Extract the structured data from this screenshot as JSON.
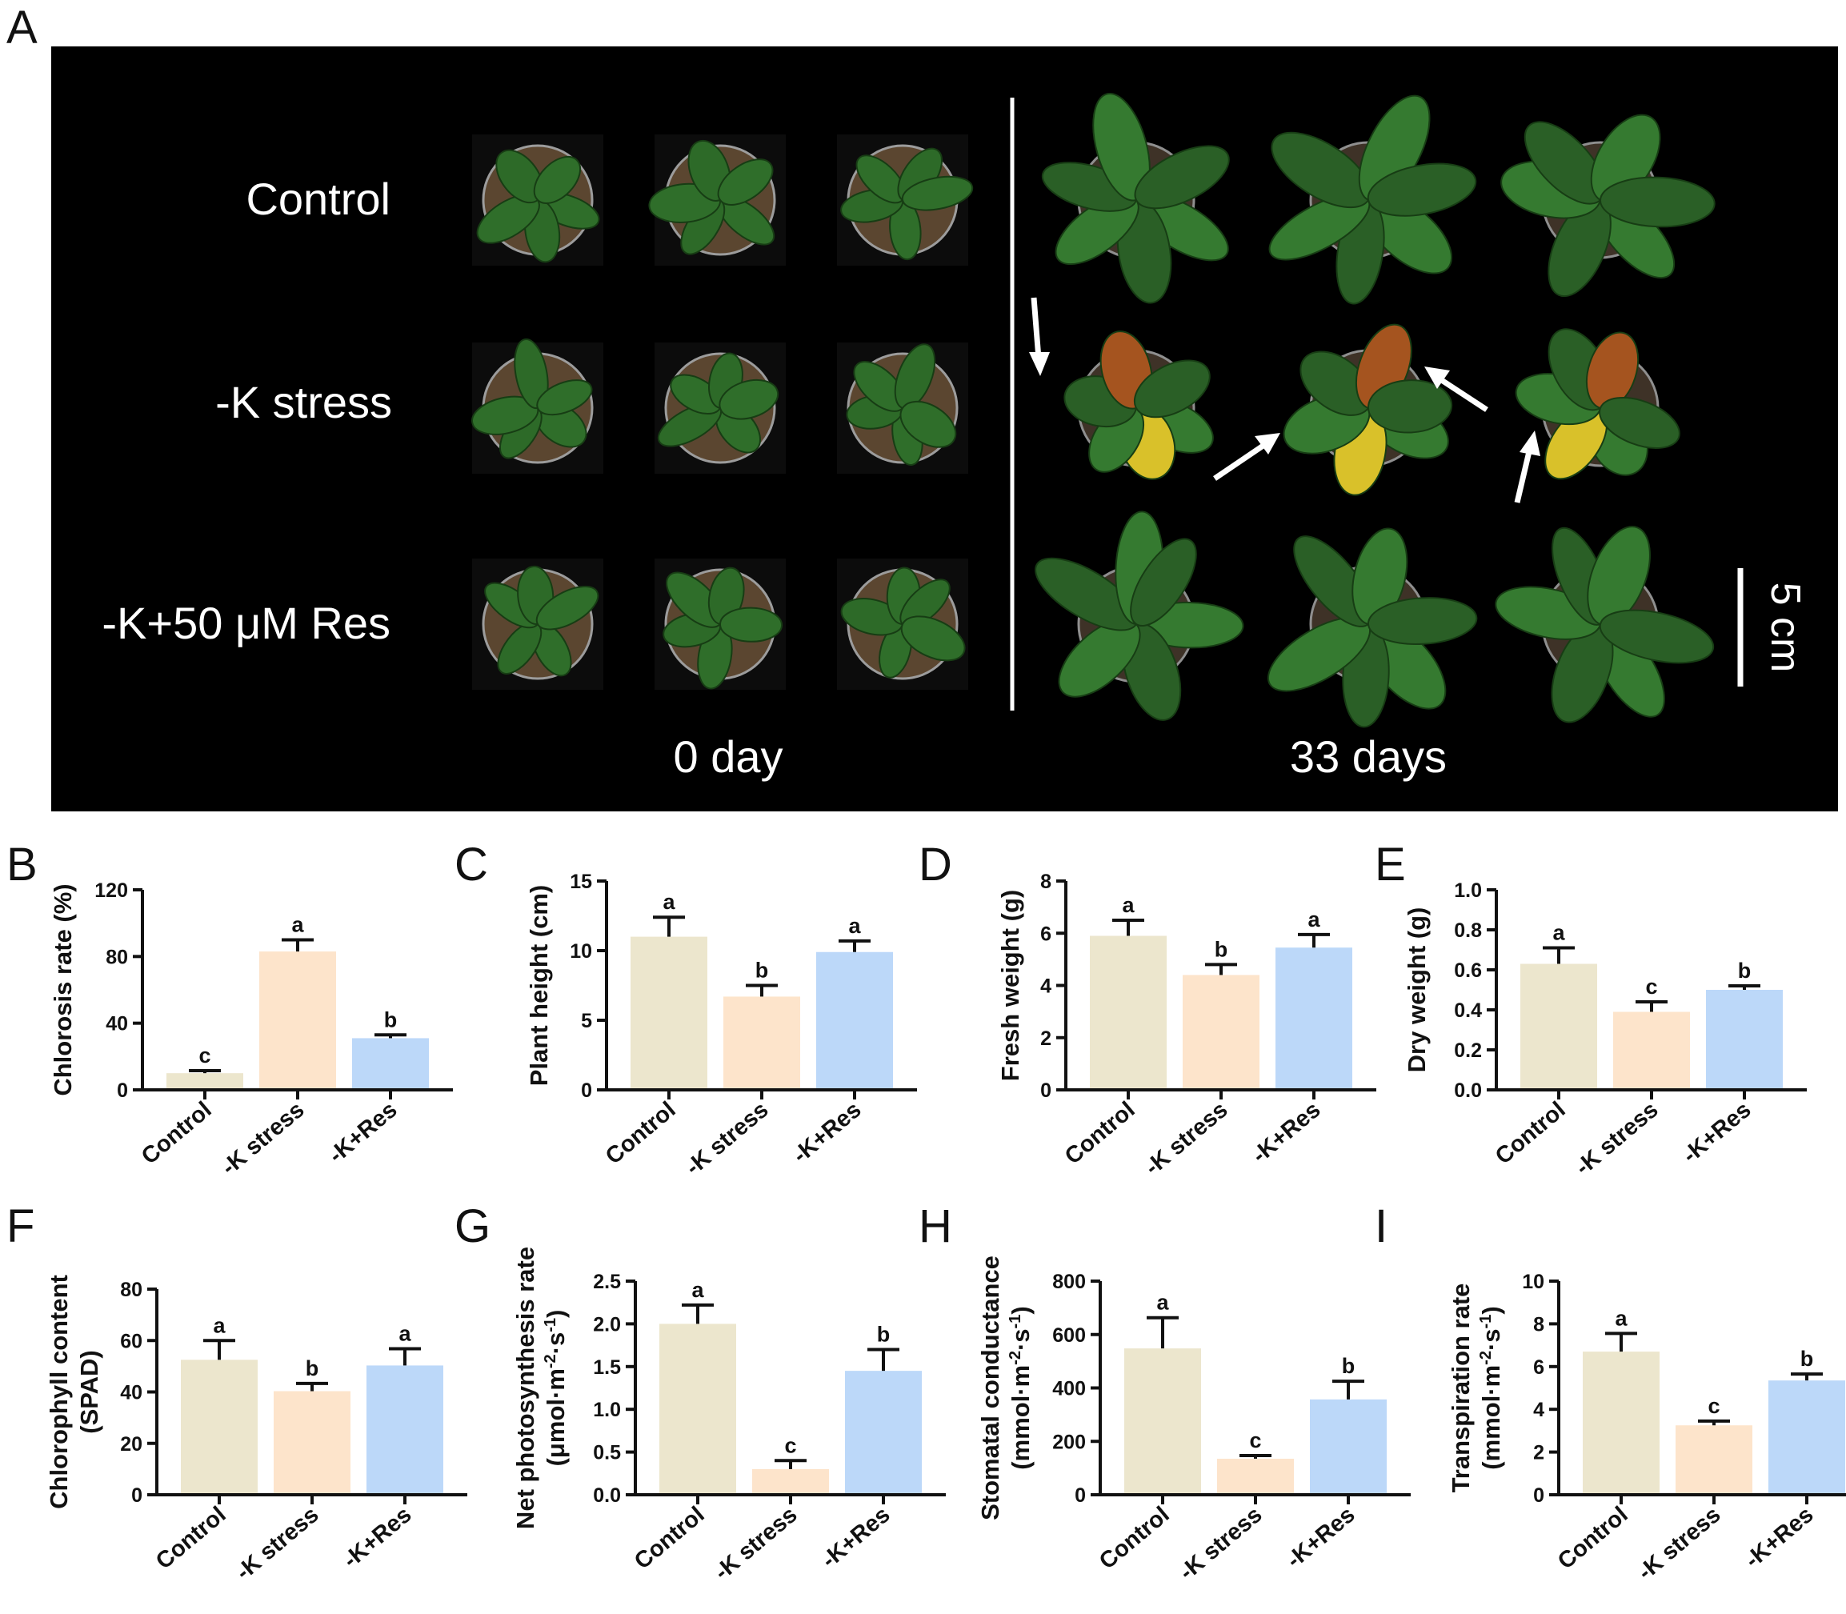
{
  "panel_letters": [
    "A",
    "B",
    "C",
    "D",
    "E",
    "F",
    "G",
    "H",
    "I"
  ],
  "photo": {
    "row_labels": [
      "Control",
      "-K stress",
      "-K+50 μM Res"
    ],
    "time_labels": [
      "0 day",
      "33 days"
    ],
    "scale_bar": "5 cm"
  },
  "colors": {
    "control": "#ece6cd",
    "k_stress": "#fde4cb",
    "k_res": "#bcd8f9",
    "photo_background": "#000000",
    "healthy_leaf": "#2f6e2a",
    "chlorotic_leaf": "#d9c12a"
  },
  "chart_data": [
    {
      "panel": "B",
      "type": "bar",
      "categories": [
        "Control",
        "-K stress",
        "-K+Res"
      ],
      "values": [
        10,
        83,
        31
      ],
      "errors": [
        1.5,
        7,
        2
      ],
      "significance": [
        "c",
        "a",
        "b"
      ],
      "ylabel": "Chlorosis rate (%)",
      "ylim": [
        0,
        120
      ],
      "yticks": [
        0,
        40,
        80,
        120
      ],
      "ytick_labels": [
        "0",
        "40",
        "80",
        "120"
      ]
    },
    {
      "panel": "C",
      "type": "bar",
      "categories": [
        "Control",
        "-K stress",
        "-K+Res"
      ],
      "values": [
        11,
        6.7,
        9.9
      ],
      "errors": [
        1.4,
        0.8,
        0.8
      ],
      "significance": [
        "a",
        "b",
        "a"
      ],
      "ylabel": "Plant height (cm)",
      "ylim": [
        0,
        15
      ],
      "yticks": [
        0,
        5,
        10,
        15
      ],
      "ytick_labels": [
        "0",
        "5",
        "10",
        "15"
      ]
    },
    {
      "panel": "D",
      "type": "bar",
      "categories": [
        "Control",
        "-K stress",
        "-K+Res"
      ],
      "values": [
        5.9,
        4.4,
        5.45
      ],
      "errors": [
        0.6,
        0.4,
        0.5
      ],
      "significance": [
        "a",
        "b",
        "a"
      ],
      "ylabel": "Fresh weight (g)",
      "ylim": [
        0,
        8
      ],
      "yticks": [
        0,
        2,
        4,
        6,
        8
      ],
      "ytick_labels": [
        "0",
        "2",
        "4",
        "6",
        "8"
      ]
    },
    {
      "panel": "E",
      "type": "bar",
      "categories": [
        "Control",
        "-K stress",
        "-K+Res"
      ],
      "values": [
        0.63,
        0.39,
        0.5
      ],
      "errors": [
        0.08,
        0.05,
        0.02
      ],
      "significance": [
        "a",
        "c",
        "b"
      ],
      "ylabel": "Dry weight (g)",
      "ylim": [
        0,
        1.0
      ],
      "yticks": [
        0,
        0.2,
        0.4,
        0.6,
        0.8,
        1.0
      ],
      "ytick_labels": [
        "0.0",
        "0.2",
        "0.4",
        "0.6",
        "0.8",
        "1.0"
      ]
    },
    {
      "panel": "F",
      "type": "bar",
      "categories": [
        "Control",
        "-K stress",
        "-K+Res"
      ],
      "values": [
        52.5,
        40.3,
        50.3
      ],
      "errors": [
        7.5,
        3,
        6.5
      ],
      "significance": [
        "a",
        "b",
        "a"
      ],
      "ylabel": [
        "Chlorophyll content",
        "(SPAD)"
      ],
      "ylim": [
        0,
        80
      ],
      "yticks": [
        0,
        20,
        40,
        60,
        80
      ],
      "ytick_labels": [
        "0",
        "20",
        "40",
        "60",
        "80"
      ]
    },
    {
      "panel": "G",
      "type": "bar",
      "categories": [
        "Control",
        "-K stress",
        "-K+Res"
      ],
      "values": [
        2.0,
        0.3,
        1.45
      ],
      "errors": [
        0.22,
        0.1,
        0.25
      ],
      "significance": [
        "a",
        "c",
        "b"
      ],
      "ylabel": [
        "Net photosynthesis rate",
        "(μmol·m^-2·s^-1)"
      ],
      "ylim": [
        0,
        2.5
      ],
      "yticks": [
        0,
        0.5,
        1.0,
        1.5,
        2.0,
        2.5
      ],
      "ytick_labels": [
        "0.0",
        "0.5",
        "1.0",
        "1.5",
        "2.0",
        "2.5"
      ]
    },
    {
      "panel": "H",
      "type": "bar",
      "categories": [
        "Control",
        "-K stress",
        "-K+Res"
      ],
      "values": [
        548,
        135,
        357
      ],
      "errors": [
        115,
        12,
        68
      ],
      "significance": [
        "a",
        "c",
        "b"
      ],
      "ylabel": [
        "Stomatal conductance",
        "(mmol·m^-2·s^-1)"
      ],
      "ylim": [
        0,
        800
      ],
      "yticks": [
        0,
        200,
        400,
        600,
        800
      ],
      "ytick_labels": [
        "0",
        "200",
        "400",
        "600",
        "800"
      ]
    },
    {
      "panel": "I",
      "type": "bar",
      "categories": [
        "Control",
        "-K stress",
        "-K+Res"
      ],
      "values": [
        6.7,
        3.25,
        5.35
      ],
      "errors": [
        0.85,
        0.2,
        0.3
      ],
      "significance": [
        "a",
        "c",
        "b"
      ],
      "ylabel": [
        "Transpiration rate",
        "(mmol·m^-2·s^-1)"
      ],
      "ylim": [
        0,
        10
      ],
      "yticks": [
        0,
        2,
        4,
        6,
        8,
        10
      ],
      "ytick_labels": [
        "0",
        "2",
        "4",
        "6",
        "8",
        "10"
      ]
    }
  ]
}
